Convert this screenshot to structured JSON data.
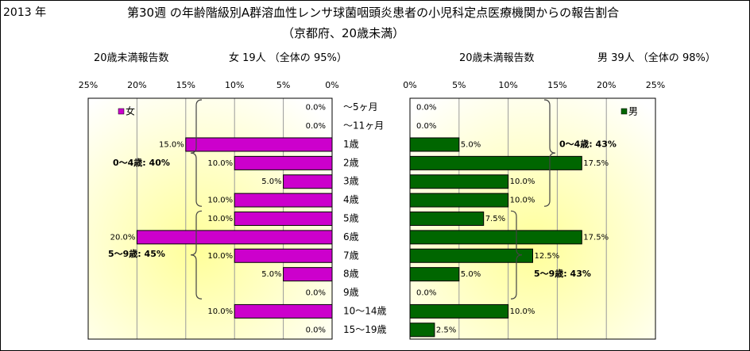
{
  "year_label": "2013 年",
  "title": "第30週 の年齢階級別A群溶血性レンサ球菌咽頭炎患者の小児科定点医療機関からの報告割合",
  "subtitle": "（京都府、20歳未満）",
  "left_header": {
    "label": "20歳未満報告数",
    "summary": "女 19人 （全体の 95%）"
  },
  "right_header": {
    "label": "20歳未満報告数",
    "summary": "男 39人 （全体の 98%）"
  },
  "colors": {
    "female": "#CC00CC",
    "male": "#006600",
    "plot_glow": "#FFFF99",
    "grid": "#9a9a9a"
  },
  "chart_data": {
    "type": "bar",
    "categories": [
      "～5ヶ月",
      "～11ヶ月",
      "1歳",
      "2歳",
      "3歳",
      "4歳",
      "5歳",
      "6歳",
      "7歳",
      "8歳",
      "9歳",
      "10～14歳",
      "15～19歳"
    ],
    "xlim": [
      0,
      25
    ],
    "tick_values": [
      0,
      5,
      10,
      15,
      20,
      25
    ],
    "tick_labels": [
      "0%",
      "5%",
      "10%",
      "15%",
      "20%",
      "25%"
    ],
    "series": [
      {
        "name": "女",
        "values": [
          0.0,
          0.0,
          15.0,
          10.0,
          5.0,
          10.0,
          10.0,
          20.0,
          10.0,
          5.0,
          0.0,
          10.0,
          0.0
        ],
        "labels": [
          "0.0%",
          "0.0%",
          "15.0%",
          "10.0%",
          "5.0%",
          "10.0%",
          "10.0%",
          "20.0%",
          "10.0%",
          "5.0%",
          "0.0%",
          "10.0%",
          "0.0%"
        ]
      },
      {
        "name": "男",
        "values": [
          0.0,
          0.0,
          5.0,
          17.5,
          10.0,
          10.0,
          7.5,
          17.5,
          12.5,
          5.0,
          0.0,
          10.0,
          2.5
        ],
        "labels": [
          "0.0%",
          "0.0%",
          "5.0%",
          "17.5%",
          "10.0%",
          "10.0%",
          "7.5%",
          "17.5%",
          "12.5%",
          "5.0%",
          "0.0%",
          "10.0%",
          "2.5%"
        ]
      }
    ],
    "annotations": {
      "female": [
        {
          "text": "0～4歳: 40%",
          "from": 0,
          "to": 5
        },
        {
          "text": "5～9歳: 45%",
          "from": 6,
          "to": 10
        }
      ],
      "male": [
        {
          "text": "0～4歳: 43%",
          "from": 0,
          "to": 5
        },
        {
          "text": "5～9歳: 43%",
          "from": 6,
          "to": 10
        }
      ]
    }
  }
}
